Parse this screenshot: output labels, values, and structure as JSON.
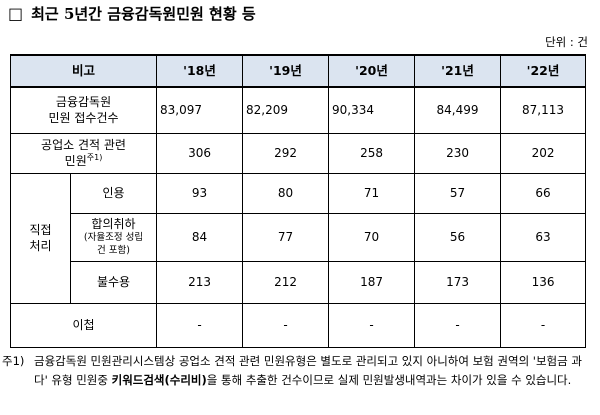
{
  "title": {
    "box": "□",
    "text": "최근 5년간 금융감독원민원 현황 등",
    "bracket": ""
  },
  "unit": "단위 : 건",
  "table": {
    "header": [
      "비고",
      "'18년",
      "'19년",
      "'20년",
      "'21년",
      "'22년"
    ],
    "rows": {
      "received": {
        "label_line1": "금융감독원",
        "label_line2": "민원 접수건수",
        "values": [
          "83,097",
          "82,209",
          "90,334",
          "84,499",
          "87,113"
        ]
      },
      "quote": {
        "label_line1": "공업소 견적 관련",
        "label_line2": "민원",
        "sup": "주1)",
        "values": [
          "306",
          "292",
          "258",
          "230",
          "202"
        ]
      },
      "direct": {
        "group_line1": "직접",
        "group_line2": "처리",
        "accept": {
          "label": "인용",
          "values": [
            "93",
            "80",
            "71",
            "57",
            "66"
          ]
        },
        "settle": {
          "label": "합의취하",
          "sub_line1": "(자율조정 성립",
          "sub_line2": "건 포함)",
          "values": [
            "84",
            "77",
            "70",
            "56",
            "63"
          ]
        },
        "reject": {
          "label": "불수용",
          "values": [
            "213",
            "212",
            "187",
            "173",
            "136"
          ]
        }
      },
      "transfer": {
        "label": "이첩",
        "values": [
          "-",
          "-",
          "-",
          "-",
          "-"
        ]
      }
    }
  },
  "footnote": {
    "mark": "주1)",
    "text_before": "금융감독원 민원관리시스템상 공업소 견적 관련 민원유형은 별도로 관리되고 있지 아니하여 보험 권역의 '보험금 과다' 유형 민원중 ",
    "keyword": "키워드검색(수리비)",
    "text_after": "을 통해 추출한 건수이므로 실제 민원발생내역과는 차이가 있을 수 있습니다."
  }
}
